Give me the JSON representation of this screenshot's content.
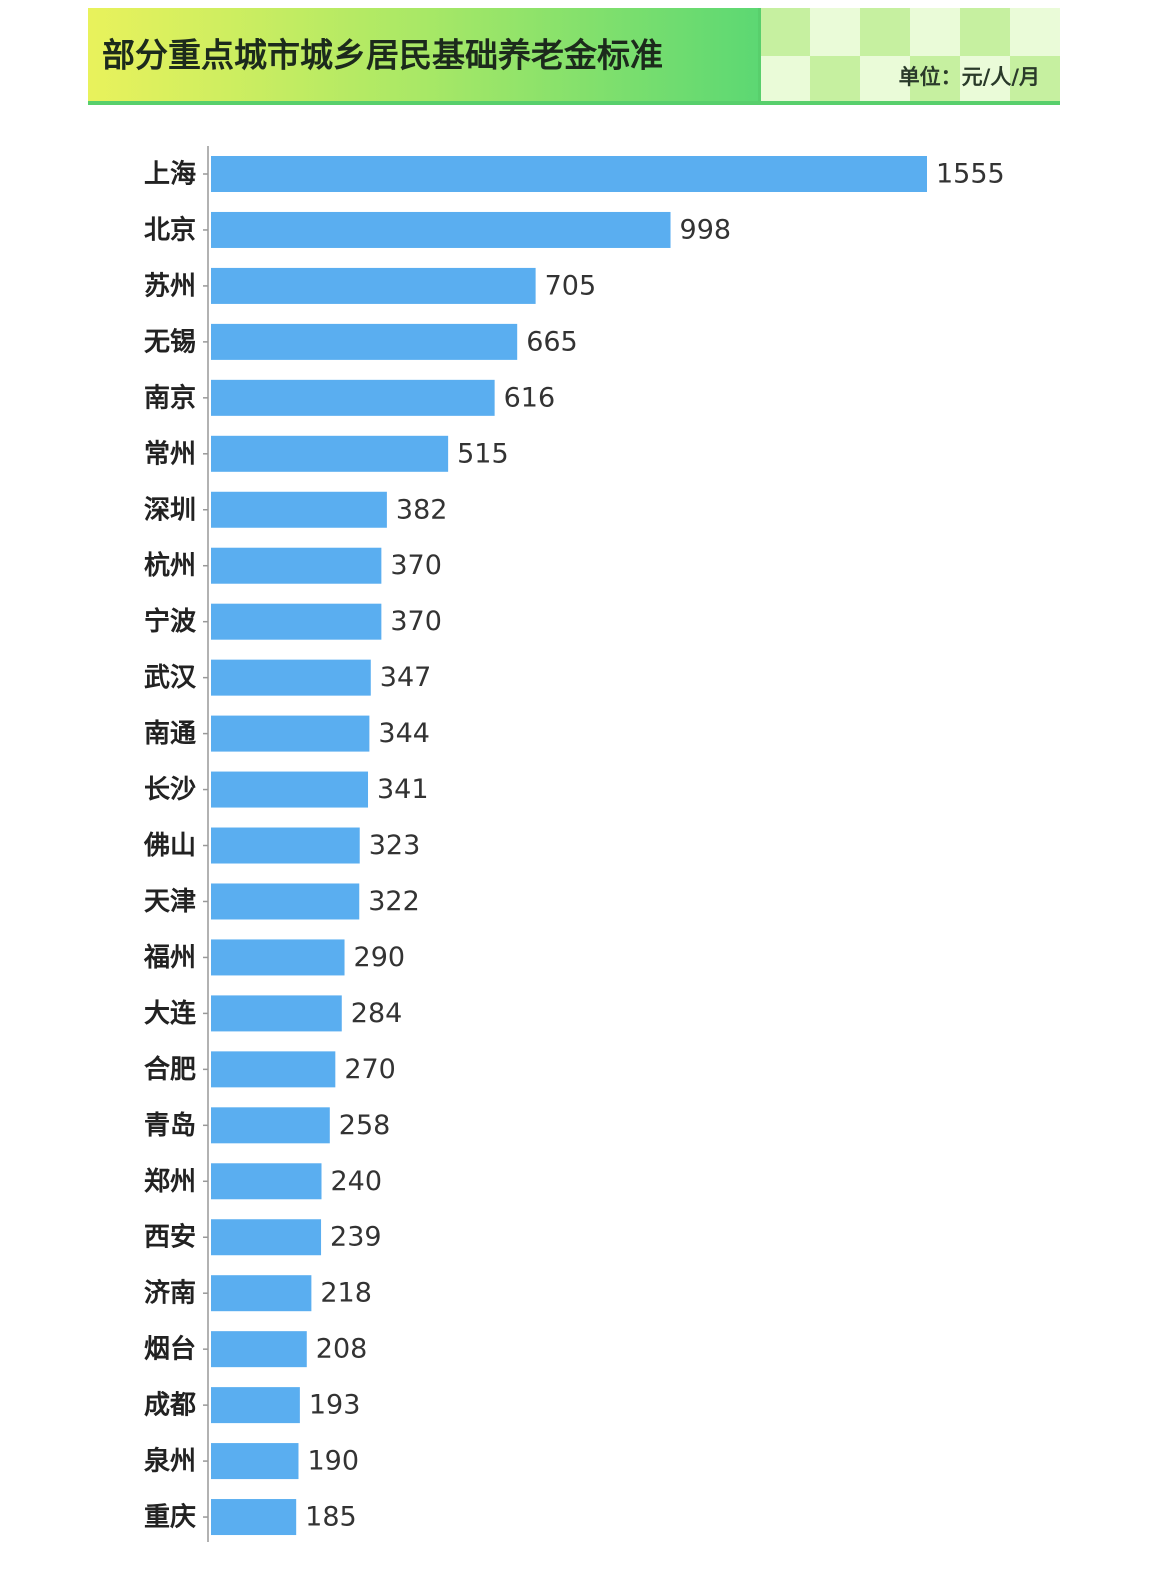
{
  "chart_data": {
    "type": "bar",
    "orientation": "horizontal",
    "title": "部分重点城市城乡居民基础养老金标准",
    "unit": "单位：元/人/月",
    "color": "#5aaef0",
    "categories": [
      "上海",
      "北京",
      "苏州",
      "无锡",
      "南京",
      "常州",
      "深圳",
      "杭州",
      "宁波",
      "武汉",
      "南通",
      "长沙",
      "佛山",
      "天津",
      "福州",
      "大连",
      "合肥",
      "青岛",
      "郑州",
      "西安",
      "济南",
      "烟台",
      "成都",
      "泉州",
      "重庆"
    ],
    "values": [
      1555,
      998,
      705,
      665,
      616,
      515,
      382,
      370,
      370,
      347,
      344,
      341,
      323,
      322,
      290,
      284,
      270,
      258,
      240,
      239,
      218,
      208,
      193,
      190,
      185
    ]
  }
}
